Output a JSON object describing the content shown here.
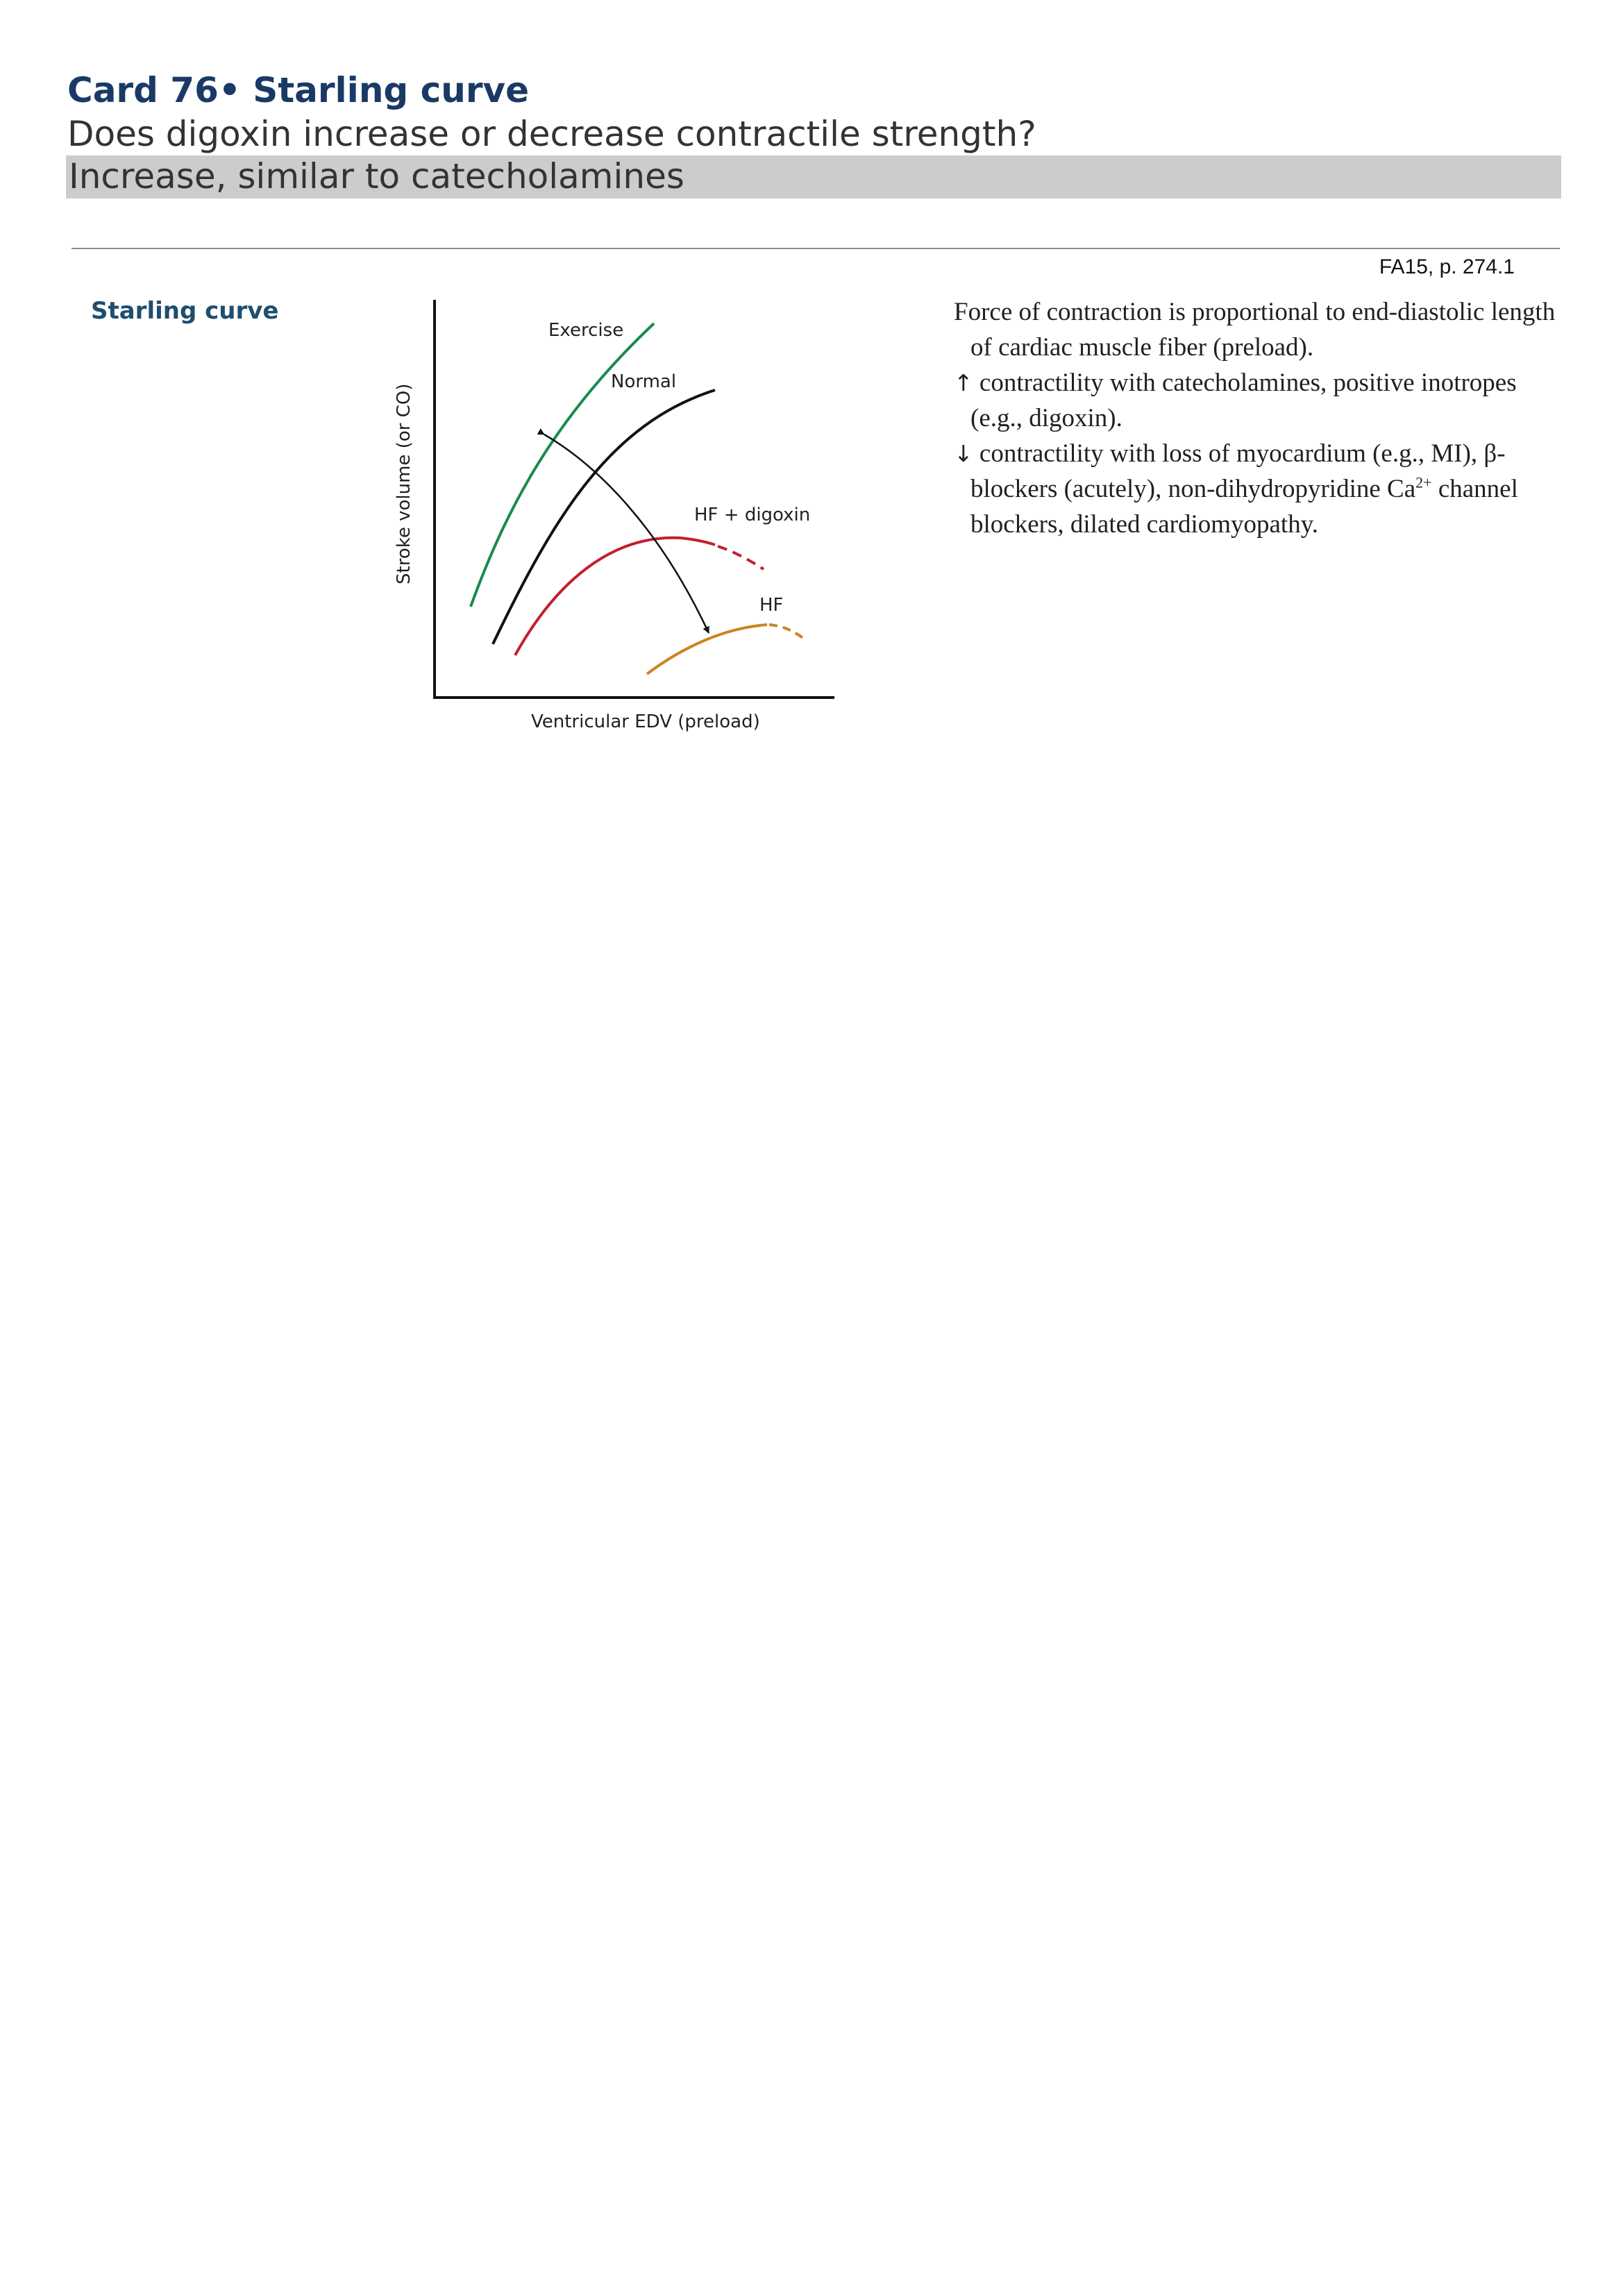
{
  "card": {
    "title": "Card 76• Starling curve",
    "question": "Does digoxin increase or decrease contractile strength?",
    "answer": "Increase, similar to catecholamines"
  },
  "source_ref": "FA15, p. 274.1",
  "section_heading": "Starling curve",
  "figure": {
    "y_axis_label": "Stroke volume (or CO)",
    "x_axis_label": "Ventricular EDV (preload)",
    "curve_labels": {
      "exercise": "Exercise",
      "normal": "Normal",
      "hf_digoxin": "HF + digoxin",
      "hf": "HF"
    },
    "colors": {
      "exercise": "#1a8a4e",
      "normal": "#111111",
      "hf_digoxin": "#c0202e",
      "hf": "#cc8420"
    }
  },
  "body": {
    "para1": "Force of contraction is proportional to end-diastolic length of cardiac muscle fiber (preload).",
    "para2_arrow": "↑",
    "para2": "contractility with catecholamines, positive inotropes (e.g., digoxin).",
    "para3_arrow": "↓",
    "para3_a": "contractility with loss of myocardium (e.g., MI), β-blockers (acutely), non-dihydropyridine Ca",
    "para3_sup": "2+",
    "para3_b": " channel blockers, dilated cardiomyopathy."
  }
}
